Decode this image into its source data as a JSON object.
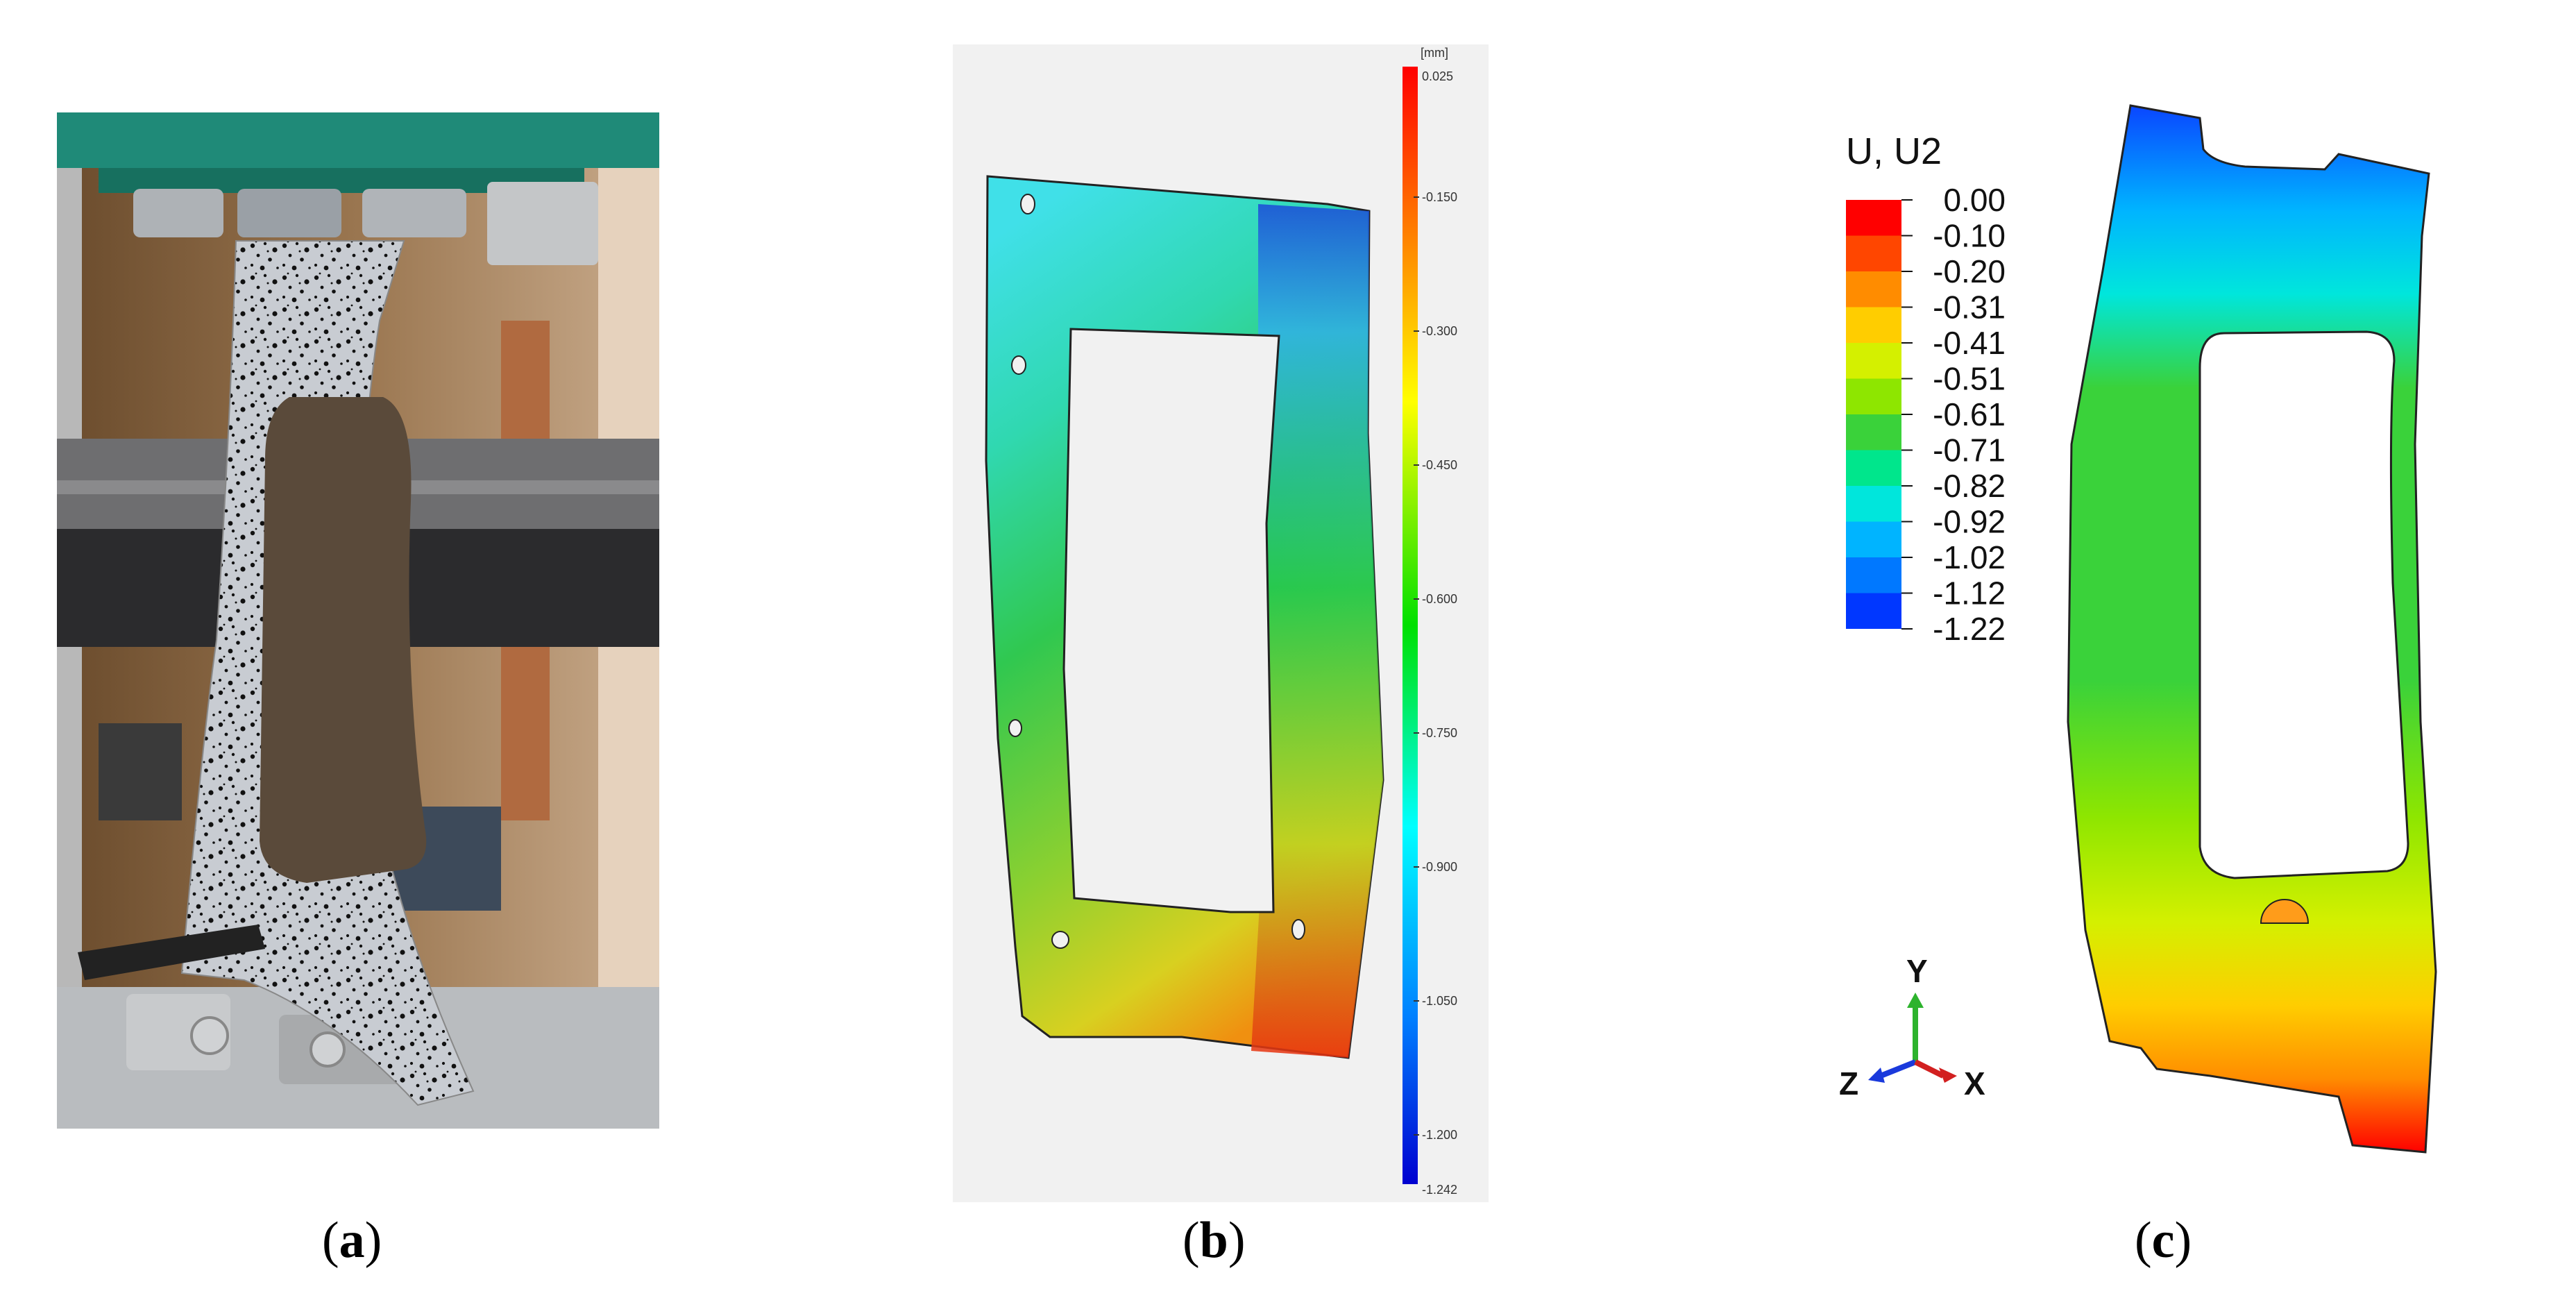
{
  "captions": {
    "a": "a",
    "b": "b",
    "c": "c"
  },
  "panel_b": {
    "unit": "[mm]",
    "scale_max": "0.025",
    "scale_min": "-1.242",
    "ticks": [
      "-0.150",
      "-0.300",
      "-0.450",
      "-0.600",
      "-0.750",
      "-0.900",
      "-1.050",
      "-1.200"
    ]
  },
  "panel_c": {
    "legend_title": "U, U2",
    "legend_values": [
      "0.00",
      "-0.10",
      "-0.20",
      "-0.31",
      "-0.41",
      "-0.51",
      "-0.61",
      "-0.71",
      "-0.82",
      "-0.92",
      "-1.02",
      "-1.12",
      "-1.22"
    ],
    "legend_colors": [
      "#ff0000",
      "#ff4600",
      "#ff8c00",
      "#ffcd00",
      "#d4f000",
      "#8ee600",
      "#3ad23a",
      "#00e68c",
      "#00e6dc",
      "#00b4ff",
      "#0078ff",
      "#0037ff"
    ],
    "axis_y": "Y",
    "axis_x": "X",
    "axis_z": "Z"
  }
}
